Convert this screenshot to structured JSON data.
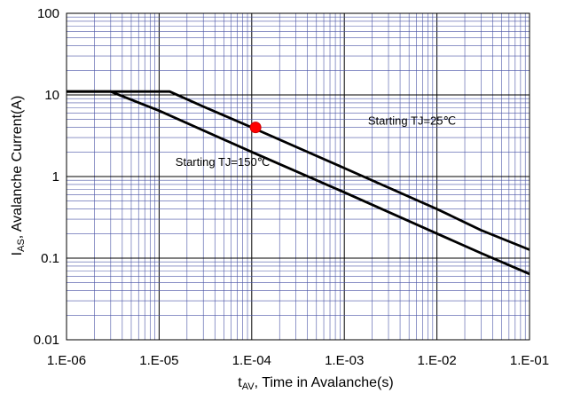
{
  "chart_data": {
    "type": "line",
    "xscale": "log",
    "yscale": "log",
    "xlim": [
      1e-06,
      0.1
    ],
    "ylim": [
      0.01,
      100
    ],
    "grid": true,
    "xlabel": {
      "main": "t",
      "sub": "AV",
      "rest": ", Time in Avalanche(s)"
    },
    "ylabel": {
      "main": "I",
      "sub": "AS",
      "rest": ", Avalanche Current(A)"
    },
    "x_tick_labels": [
      "1.E-06",
      "1.E-05",
      "1.E-04",
      "1.E-03",
      "1.E-02",
      "1.E-01"
    ],
    "y_tick_labels": [
      "0.01",
      "0.1",
      "1",
      "10",
      "100"
    ],
    "x_tick_values": [
      1e-06,
      1e-05,
      0.0001,
      0.001,
      0.01,
      0.1
    ],
    "y_tick_values": [
      0.01,
      0.1,
      1,
      10,
      100
    ],
    "series": [
      {
        "name": "Starting TJ=25℃",
        "color": "#000000",
        "x": [
          1e-06,
          1.3e-05,
          3e-05,
          0.0001,
          0.001,
          0.01,
          0.03,
          0.1
        ],
        "y": [
          11,
          11,
          7.2,
          4,
          1.27,
          0.4,
          0.22,
          0.127
        ]
      },
      {
        "name": "Starting TJ=150℃",
        "color": "#000000",
        "x": [
          1e-06,
          3e-06,
          1e-05,
          0.0001,
          0.001,
          0.01,
          0.03,
          0.1
        ],
        "y": [
          11,
          11,
          6.4,
          2,
          0.64,
          0.2,
          0.115,
          0.064
        ]
      }
    ],
    "annotations": [
      {
        "text": "Starting TJ=25℃",
        "x": 0.0018,
        "y": 4.3
      },
      {
        "text": "Starting TJ=150℃",
        "x": 1.5e-05,
        "y": 1.35
      }
    ],
    "marker": {
      "x": 0.00011,
      "y": 4,
      "color": "#ff0000"
    }
  }
}
